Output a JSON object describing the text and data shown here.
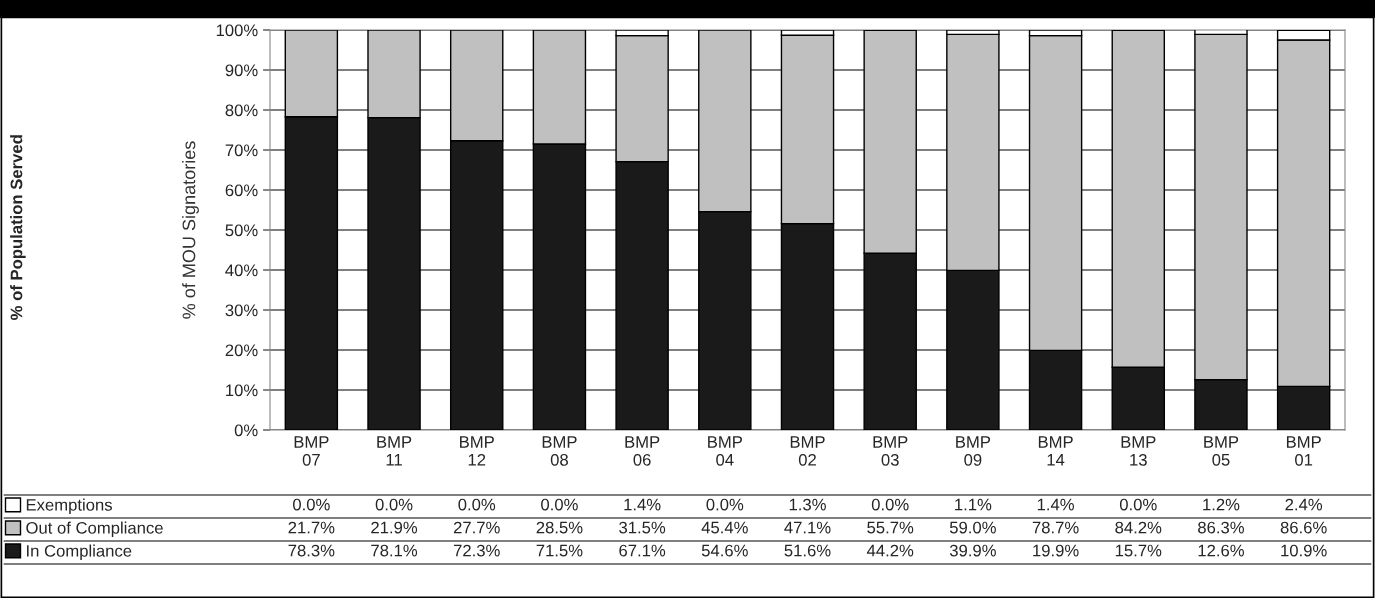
{
  "chart_data": {
    "type": "bar",
    "stacked": true,
    "categories": [
      "BMP\n07",
      "BMP\n11",
      "BMP\n12",
      "BMP\n08",
      "BMP\n06",
      "BMP\n04",
      "BMP\n02",
      "BMP\n03",
      "BMP\n09",
      "BMP\n14",
      "BMP\n13",
      "BMP\n05",
      "BMP\n01"
    ],
    "ylabel": "% of MOU Signatories",
    "annotations": [
      "% of Population Served"
    ],
    "ylim": [
      0,
      100
    ],
    "yticks": [
      {
        "value": 0,
        "label": "0%"
      },
      {
        "value": 10,
        "label": "10%"
      },
      {
        "value": 20,
        "label": "20%"
      },
      {
        "value": 30,
        "label": "30%"
      },
      {
        "value": 40,
        "label": "40%"
      },
      {
        "value": 50,
        "label": "50%"
      },
      {
        "value": 60,
        "label": "60%"
      },
      {
        "value": 70,
        "label": "70%"
      },
      {
        "value": 80,
        "label": "80%"
      },
      {
        "value": 90,
        "label": "90%"
      },
      {
        "value": 100,
        "label": "100%"
      }
    ],
    "grid": "y",
    "legend": "bottom",
    "series": [
      {
        "name": "In Compliance",
        "color": "#1a1a1a",
        "values": [
          78.3,
          78.1,
          72.3,
          71.5,
          67.1,
          54.6,
          51.6,
          44.2,
          39.9,
          19.9,
          15.7,
          12.6,
          10.9
        ],
        "value_labels": [
          "78.3%",
          "78.1%",
          "72.3%",
          "71.5%",
          "67.1%",
          "54.6%",
          "51.6%",
          "44.2%",
          "39.9%",
          "19.9%",
          "15.7%",
          "12.6%",
          "10.9%"
        ]
      },
      {
        "name": "Out of Compliance",
        "color": "#c0c0c0",
        "values": [
          21.7,
          21.9,
          27.7,
          28.5,
          31.5,
          45.4,
          47.1,
          55.7,
          59.0,
          78.7,
          84.2,
          86.3,
          86.6
        ],
        "value_labels": [
          "21.7%",
          "21.9%",
          "27.7%",
          "28.5%",
          "31.5%",
          "45.4%",
          "47.1%",
          "55.7%",
          "59.0%",
          "78.7%",
          "84.2%",
          "86.3%",
          "86.6%"
        ]
      },
      {
        "name": "Exemptions",
        "color": "#ffffff",
        "values": [
          0.0,
          0.0,
          0.0,
          0.0,
          1.4,
          0.0,
          1.3,
          0.0,
          1.1,
          1.4,
          0.0,
          1.2,
          2.4
        ],
        "value_labels": [
          "0.0%",
          "0.0%",
          "0.0%",
          "0.0%",
          "1.4%",
          "0.0%",
          "1.3%",
          "0.0%",
          "1.1%",
          "1.4%",
          "0.0%",
          "1.2%",
          "2.4%"
        ]
      }
    ]
  }
}
